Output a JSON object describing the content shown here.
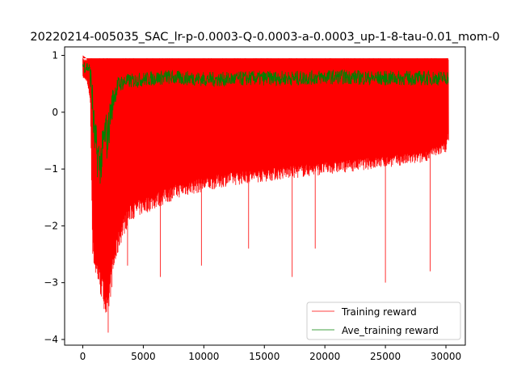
{
  "chart_data": {
    "type": "line",
    "title": "20220214-005035_SAC_lr-p-0.0003-Q-0.0003-a-0.0003_up-1-8-tau-0.01_mom-0",
    "xlabel": "",
    "ylabel": "",
    "xlim": [
      -1500,
      31600
    ],
    "ylim": [
      -4.1,
      1.15
    ],
    "x_ticks": [
      0,
      5000,
      10000,
      15000,
      20000,
      25000,
      30000
    ],
    "x_tick_labels": [
      "0",
      "5000",
      "10000",
      "15000",
      "20000",
      "25000",
      "30000"
    ],
    "y_ticks": [
      1,
      0,
      -1,
      -2,
      -3,
      -4
    ],
    "y_tick_labels": [
      "1",
      "0",
      "−1",
      "−2",
      "−3",
      "−4"
    ],
    "grid": false,
    "legend_position": "lower-right",
    "series": [
      {
        "name": "Training reward",
        "color": "#ff0000",
        "envelope": {
          "x": [
            0,
            300,
            600,
            700,
            800,
            1000,
            1200,
            1500,
            1800,
            2000,
            2200,
            2500,
            3000,
            3500,
            4000,
            5000,
            6000,
            7000,
            8000,
            9000,
            10000,
            12000,
            14000,
            16000,
            18000,
            20000,
            22000,
            24000,
            26000,
            28000,
            30000,
            30200
          ],
          "upper": [
            0.95,
            0.95,
            0.95,
            0.95,
            0.95,
            0.95,
            0.95,
            0.95,
            0.95,
            0.95,
            0.95,
            0.95,
            0.95,
            0.95,
            0.95,
            0.95,
            0.95,
            0.95,
            0.95,
            0.95,
            0.95,
            0.95,
            0.95,
            0.95,
            0.95,
            0.95,
            0.95,
            0.95,
            0.95,
            0.95,
            0.95,
            0.95
          ],
          "lower": [
            0.6,
            0.55,
            0.2,
            -1.2,
            -2.5,
            -2.9,
            -3.0,
            -3.3,
            -3.5,
            -3.85,
            -3.4,
            -2.9,
            -2.4,
            -2.1,
            -1.9,
            -1.8,
            -1.7,
            -1.6,
            -1.5,
            -1.45,
            -1.4,
            -1.3,
            -1.25,
            -1.2,
            -1.15,
            -1.1,
            -1.05,
            -1.0,
            -0.95,
            -0.9,
            -0.7,
            -0.5
          ]
        },
        "spikes": [
          [
            2100,
            -3.88
          ],
          [
            3700,
            -2.7
          ],
          [
            6400,
            -2.9
          ],
          [
            9800,
            -2.7
          ],
          [
            13700,
            -2.4
          ],
          [
            17300,
            -2.9
          ],
          [
            19200,
            -2.4
          ],
          [
            25000,
            -3.0
          ],
          [
            28700,
            -2.8
          ]
        ]
      },
      {
        "name": "Ave_training reward",
        "color": "#008000",
        "x": [
          0,
          300,
          500,
          700,
          800,
          900,
          1000,
          1100,
          1200,
          1300,
          1400,
          1500,
          1600,
          1700,
          1800,
          1900,
          2000,
          2100,
          2200,
          2300,
          2400,
          2500,
          2600,
          2800,
          3000,
          3300,
          3600,
          4000,
          5000,
          6000,
          7000,
          8000,
          9000,
          10000,
          12000,
          14000,
          16000,
          18000,
          20000,
          22000,
          24000,
          26000,
          28000,
          30000,
          30200
        ],
        "values": [
          0.82,
          0.8,
          0.78,
          0.55,
          0.2,
          -0.2,
          -0.5,
          -0.6,
          -0.75,
          -0.8,
          -0.9,
          -0.85,
          -0.75,
          -0.55,
          -0.45,
          -0.3,
          -0.5,
          -0.35,
          -0.2,
          0.0,
          0.1,
          0.2,
          0.3,
          0.42,
          0.5,
          0.52,
          0.55,
          0.55,
          0.58,
          0.6,
          0.62,
          0.6,
          0.6,
          0.58,
          0.58,
          0.6,
          0.6,
          0.6,
          0.62,
          0.62,
          0.6,
          0.6,
          0.6,
          0.6,
          0.62
        ],
        "band": [
          0.12,
          0.12,
          0.12,
          0.25,
          0.35,
          0.4,
          0.4,
          0.4,
          0.4,
          0.4,
          0.4,
          0.4,
          0.4,
          0.4,
          0.4,
          0.4,
          0.4,
          0.35,
          0.35,
          0.3,
          0.3,
          0.25,
          0.2,
          0.18,
          0.15,
          0.14,
          0.13,
          0.13,
          0.13,
          0.13,
          0.13,
          0.13,
          0.13,
          0.13,
          0.13,
          0.13,
          0.13,
          0.13,
          0.13,
          0.13,
          0.13,
          0.13,
          0.13,
          0.13,
          0.13
        ]
      }
    ]
  }
}
